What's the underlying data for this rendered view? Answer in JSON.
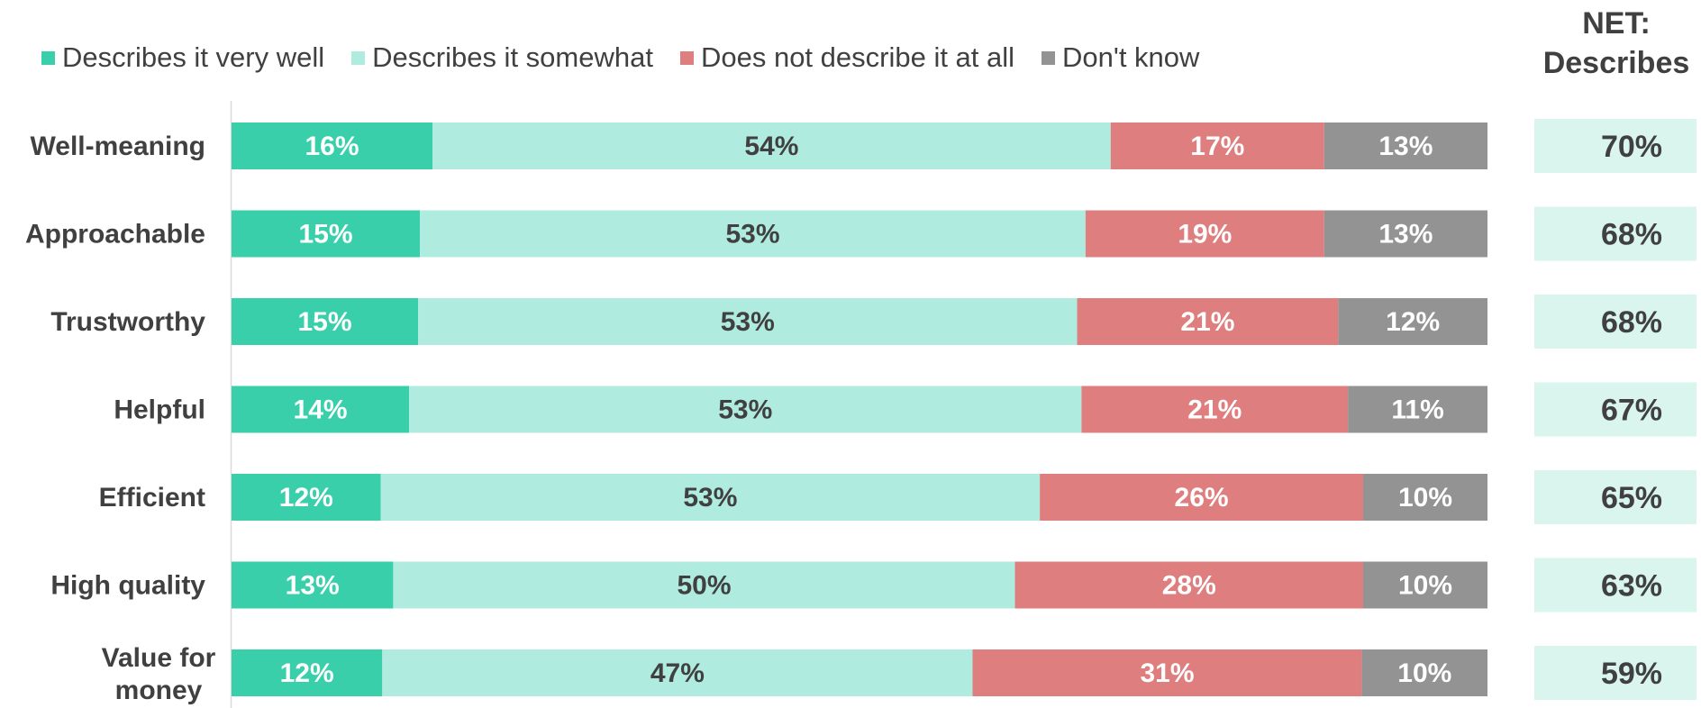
{
  "chart_data": {
    "type": "bar",
    "orientation": "horizontal",
    "stacked": true,
    "title": "",
    "categories": [
      "Well-meaning",
      "Approachable",
      "Trustworthy",
      "Helpful",
      "Efficient",
      "High quality",
      "Value for money"
    ],
    "series": [
      {
        "name": "Describes it very well",
        "color": "#38cfaa",
        "label_color": "#ffffff",
        "values": [
          16,
          15,
          15,
          14,
          12,
          13,
          12
        ]
      },
      {
        "name": "Describes it somewhat",
        "color": "#b0ebdf",
        "label_color": "#404040",
        "values": [
          54,
          53,
          53,
          53,
          53,
          50,
          47
        ]
      },
      {
        "name": "Does not describe it at all",
        "color": "#df7e7e",
        "label_color": "#ffffff",
        "values": [
          17,
          19,
          21,
          21,
          26,
          28,
          31
        ]
      },
      {
        "name": "Don't know",
        "color": "#939393",
        "label_color": "#ffffff",
        "values": [
          13,
          13,
          12,
          11,
          10,
          10,
          10
        ]
      }
    ],
    "net": {
      "header_line1": "NET:",
      "header_line2": "Describes",
      "values": [
        "70%",
        "68%",
        "68%",
        "67%",
        "65%",
        "63%",
        "59%"
      ],
      "box_color": "#d9f5ee"
    },
    "value_suffix": "%",
    "legend_position": "top",
    "grid": false
  }
}
